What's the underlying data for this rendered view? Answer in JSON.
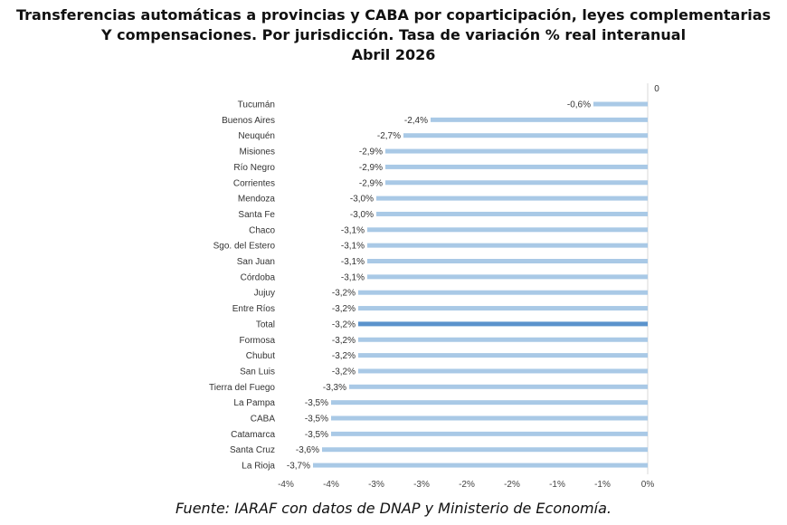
{
  "chart_data": {
    "type": "bar",
    "orientation": "horizontal",
    "title_lines": [
      "Transferencias automáticas a provincias y CABA por coparticipación, leyes complementarias",
      "Y compensaciones. Por jurisdicción. Tasa de variación % real interanual",
      "Abril 2026"
    ],
    "categories": [
      "Tucumán",
      "Buenos Aires",
      "Neuquén",
      "Misiones",
      "Río Negro",
      "Corrientes",
      "Mendoza",
      "Santa Fe",
      "Chaco",
      "Sgo. del Estero",
      "San Juan",
      "Córdoba",
      "Jujuy",
      "Entre Ríos",
      "Total",
      "Formosa",
      "Chubut",
      "San Luis",
      "Tierra del Fuego",
      "La Pampa",
      "CABA",
      "Catamarca",
      "Santa Cruz",
      "La Rioja"
    ],
    "values": [
      -0.6,
      -2.4,
      -2.7,
      -2.9,
      -2.9,
      -2.9,
      -3.0,
      -3.0,
      -3.1,
      -3.1,
      -3.1,
      -3.1,
      -3.2,
      -3.2,
      -3.2,
      -3.2,
      -3.2,
      -3.2,
      -3.3,
      -3.5,
      -3.5,
      -3.5,
      -3.6,
      -3.7
    ],
    "data_labels": [
      "-0,6%",
      "-2,4%",
      "-2,7%",
      "-2,9%",
      "-2,9%",
      "-2,9%",
      "-3,0%",
      "-3,0%",
      "-3,1%",
      "-3,1%",
      "-3,1%",
      "-3,1%",
      "-3,2%",
      "-3,2%",
      "-3,2%",
      "-3,2%",
      "-3,2%",
      "-3,2%",
      "-3,3%",
      "-3,5%",
      "-3,5%",
      "-3,5%",
      "-3,6%",
      "-3,7%"
    ],
    "highlight_category": "Total",
    "xlim": [
      -4.0,
      0
    ],
    "xticks": [
      -4.0,
      -3.5,
      -3.0,
      -2.5,
      -2.0,
      -1.5,
      -1.0,
      -0.5,
      0
    ],
    "xtick_labels": [
      "-4%",
      "-4%",
      "-3%",
      "-3%",
      "-2%",
      "-2%",
      "-1%",
      "-1%",
      "0%"
    ],
    "top_axis_label": "0",
    "colors": {
      "bar": "#a9c9e6",
      "highlight": "#5b93cc",
      "axis": "#d9d9d9"
    }
  },
  "source": "Fuente: IARAF con datos de DNAP y Ministerio de Economía."
}
